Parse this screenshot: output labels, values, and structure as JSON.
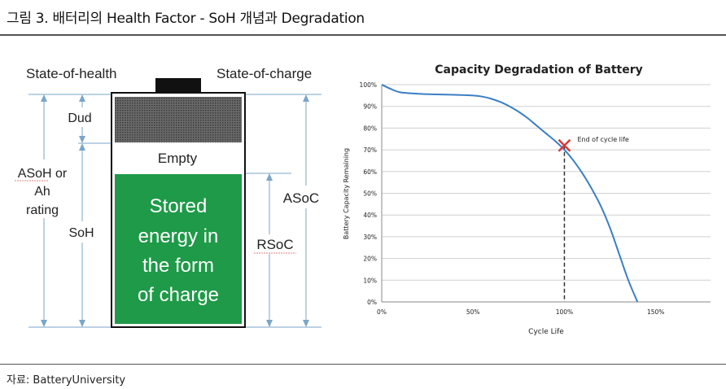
{
  "figure_title": "그림 3. 배터리의 Health Factor - SoH 개념과 Degradation",
  "source": "자료: BatteryUniversity",
  "diagram": {
    "state_of_health": "State-of-health",
    "state_of_charge": "State-of-charge",
    "dud": "Dud",
    "empty": "Empty",
    "stored_lines": [
      "Stored",
      "energy in",
      "the form",
      "of charge"
    ],
    "asoh_lines": [
      "ASoH or",
      "Ah",
      "rating"
    ],
    "soh": "SoH",
    "asoc": "ASoC",
    "rsoc": "RSoC",
    "colors": {
      "stored": "#1f9a48",
      "dud": "#555555",
      "line": "#7aa6c8"
    }
  },
  "chart_data": {
    "type": "line",
    "title": "Capacity Degradation of Battery",
    "xlabel": "Cycle Life",
    "ylabel": "Battery Capacity Remaining",
    "x_ticks": [
      "0%",
      "50%",
      "100%",
      "150%"
    ],
    "y_ticks": [
      "0%",
      "10%",
      "20%",
      "30%",
      "40%",
      "50%",
      "60%",
      "70%",
      "80%",
      "90%",
      "100%"
    ],
    "xlim": [
      0,
      180
    ],
    "ylim": [
      0,
      100
    ],
    "grid": true,
    "series": [
      {
        "x": [
          0,
          5,
          10,
          20,
          30,
          40,
          50,
          55,
          60,
          65,
          70,
          75,
          80,
          85,
          90,
          95,
          100,
          105,
          110,
          115,
          120,
          125,
          130,
          135,
          140
        ],
        "y": [
          100,
          98,
          96.5,
          95.8,
          95.5,
          95.3,
          95,
          94.5,
          93.5,
          92,
          90,
          87.5,
          84.5,
          81,
          77.5,
          74,
          70,
          65,
          59,
          52,
          44,
          34,
          22,
          10,
          0
        ],
        "color": "#3b7fc4"
      }
    ],
    "annotation": {
      "text": "End of cycle life",
      "x": 100,
      "y": 72,
      "marker_color": "#d93a3a"
    }
  }
}
